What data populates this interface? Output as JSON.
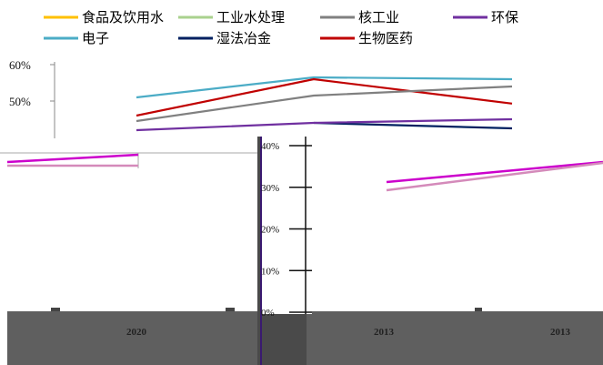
{
  "chart_data": {
    "type": "line",
    "legend": [
      {
        "name": "食品及饮用水",
        "color": "#ffc000"
      },
      {
        "name": "工业水处理",
        "color": "#a9d18e"
      },
      {
        "name": "核工业",
        "color": "#808080"
      },
      {
        "name": "环保",
        "color": "#7030a0"
      },
      {
        "name": "电子",
        "color": "#4bacc6"
      },
      {
        "name": "湿法冶金",
        "color": "#002060"
      },
      {
        "name": "生物医药",
        "color": "#c00000"
      }
    ],
    "upper_panel": {
      "categories": [
        "",
        "",
        ""
      ],
      "ytick_labels": [
        "60%",
        "50%"
      ],
      "ylim": [
        0.4,
        0.6
      ],
      "series": [
        {
          "name": "电子",
          "color": "#4bacc6",
          "values": [
            0.51,
            0.565,
            0.56
          ]
        },
        {
          "name": "生物医药",
          "color": "#c00000",
          "values": [
            0.46,
            0.56,
            0.493
          ]
        },
        {
          "name": "核工业",
          "color": "#808080",
          "values": [
            0.445,
            0.515,
            0.54
          ]
        },
        {
          "name": "湿法冶金",
          "color": "#002060",
          "values": [
            null,
            0.44,
            0.425
          ]
        },
        {
          "name": "环保",
          "color": "#7030a0",
          "values": [
            0.42,
            0.44,
            0.45
          ]
        }
      ]
    },
    "middle_panel": {
      "ytick_labels": [
        "40%",
        "30%",
        "20%",
        "10%",
        "0%"
      ],
      "ylim": [
        0,
        0.4
      ]
    },
    "lower_panel": {
      "xtick_labels": [
        "2020",
        "2013",
        "2013"
      ],
      "segments": [
        {
          "color": "#cc00cc",
          "values": [
            0.36,
            0.375
          ]
        },
        {
          "color": "#d48aba",
          "values": [
            0.35,
            0.35
          ]
        },
        {
          "color": "#cc00cc",
          "values": [
            0.31,
            0.365
          ]
        },
        {
          "color": "#d48aba",
          "values": [
            0.3,
            0.37
          ]
        }
      ]
    }
  }
}
